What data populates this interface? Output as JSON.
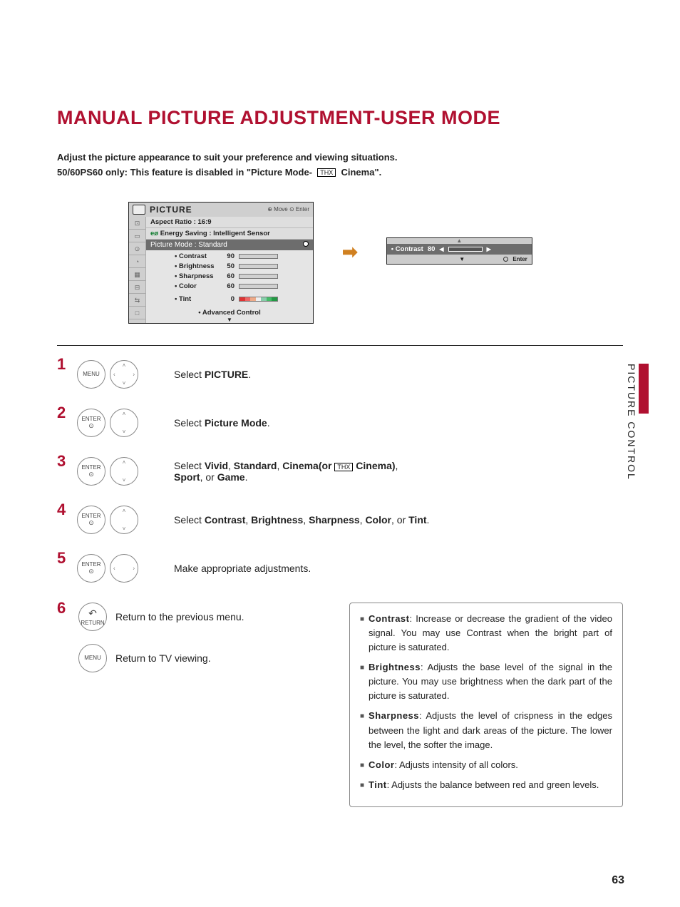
{
  "title": "MANUAL PICTURE ADJUSTMENT-USER MODE",
  "intro_line1": "Adjust the picture appearance to suit your preference and viewing situations.",
  "intro_line2_pre": "50/60PS60 only: This feature is disabled in \"",
  "intro_line2_bold1": "Picture Mode-",
  "intro_thx": "THX",
  "intro_line2_bold2": "Cinema",
  "intro_line2_post": "\".",
  "osd": {
    "title": "PICTURE",
    "nav": "⊕ Move   ⊙ Enter",
    "rows": {
      "aspect": "Aspect Ratio   : 16:9",
      "energy": "Energy Saving : Intelligent Sensor",
      "mode_label": "Picture Mode  : Standard"
    },
    "params": [
      {
        "label": "• Contrast",
        "value": "90",
        "fill": 90
      },
      {
        "label": "• Brightness",
        "value": "50",
        "fill": 50
      },
      {
        "label": "• Sharpness",
        "value": "60",
        "fill": 60
      },
      {
        "label": "• Color",
        "value": "60",
        "fill": 60
      }
    ],
    "tint_label": "• Tint",
    "tint_value": "0",
    "advanced": "• Advanced Control",
    "side_icons": [
      "⊡",
      "▭",
      "⊙",
      "◔",
      "▦",
      "⊟",
      "⇆",
      "□"
    ]
  },
  "arrow": "➡",
  "osd2": {
    "up": "▲",
    "label": "• Contrast",
    "value": "80",
    "fill": 80,
    "left": "◀",
    "right": "▶",
    "down": "▼",
    "enter": "Enter"
  },
  "steps": [
    {
      "n": "1",
      "btn1": "MENU",
      "btn2": "dpad-full",
      "text_pre": "Select ",
      "text_b": "PICTURE",
      "text_post": "."
    },
    {
      "n": "2",
      "btn1": "ENTER",
      "btn2": "dpad-ud",
      "text_pre": "Select ",
      "text_b": "Picture Mode",
      "text_post": "."
    },
    {
      "n": "3",
      "btn1": "ENTER",
      "btn2": "dpad-ud",
      "text_html": "Select <b>Vivid</b>, <b>Standard</b>, <b>Cinema(or</b> <span class='thx'>THX</span> <b>Cinema)</b>,<br><b>Sport</b>, or <b>Game</b>."
    },
    {
      "n": "4",
      "btn1": "ENTER",
      "btn2": "dpad-ud",
      "text_html": "Select <b>Contrast</b>, <b>Brightness</b>, <b>Sharpness</b>, <b>Color</b>, or <b>Tint</b>."
    },
    {
      "n": "5",
      "btn1": "ENTER",
      "btn2": "dpad-lr",
      "text_pre": "Make appropriate adjustments.",
      "text_b": "",
      "text_post": ""
    }
  ],
  "returns": [
    {
      "n": "6",
      "btn": "RETURN",
      "icon": "↶",
      "text": "Return to the previous menu."
    },
    {
      "n": "",
      "btn": "MENU",
      "icon": "",
      "text": "Return to TV viewing."
    }
  ],
  "desc": [
    {
      "b": "Contrast",
      "t": ": Increase or decrease the gradient of the video signal. You may use Contrast when the bright part of picture is saturated."
    },
    {
      "b": "Brightness",
      "t": ": Adjusts the base level of the signal in the picture. You may use brightness when the dark part of the picture is saturated."
    },
    {
      "b": "Sharpness",
      "t": ": Adjusts the level of crispness in the edges between the light and dark areas of the picture. The lower the level, the softer the image."
    },
    {
      "b": "Color",
      "t": ": Adjusts intensity of all colors."
    },
    {
      "b": "Tint",
      "t": ": Adjusts the balance between red and green levels."
    }
  ],
  "side_tab": "PICTURE CONTROL",
  "page_number": "63",
  "colors": {
    "accent": "#b01030",
    "bar": "#1a5aa8"
  }
}
